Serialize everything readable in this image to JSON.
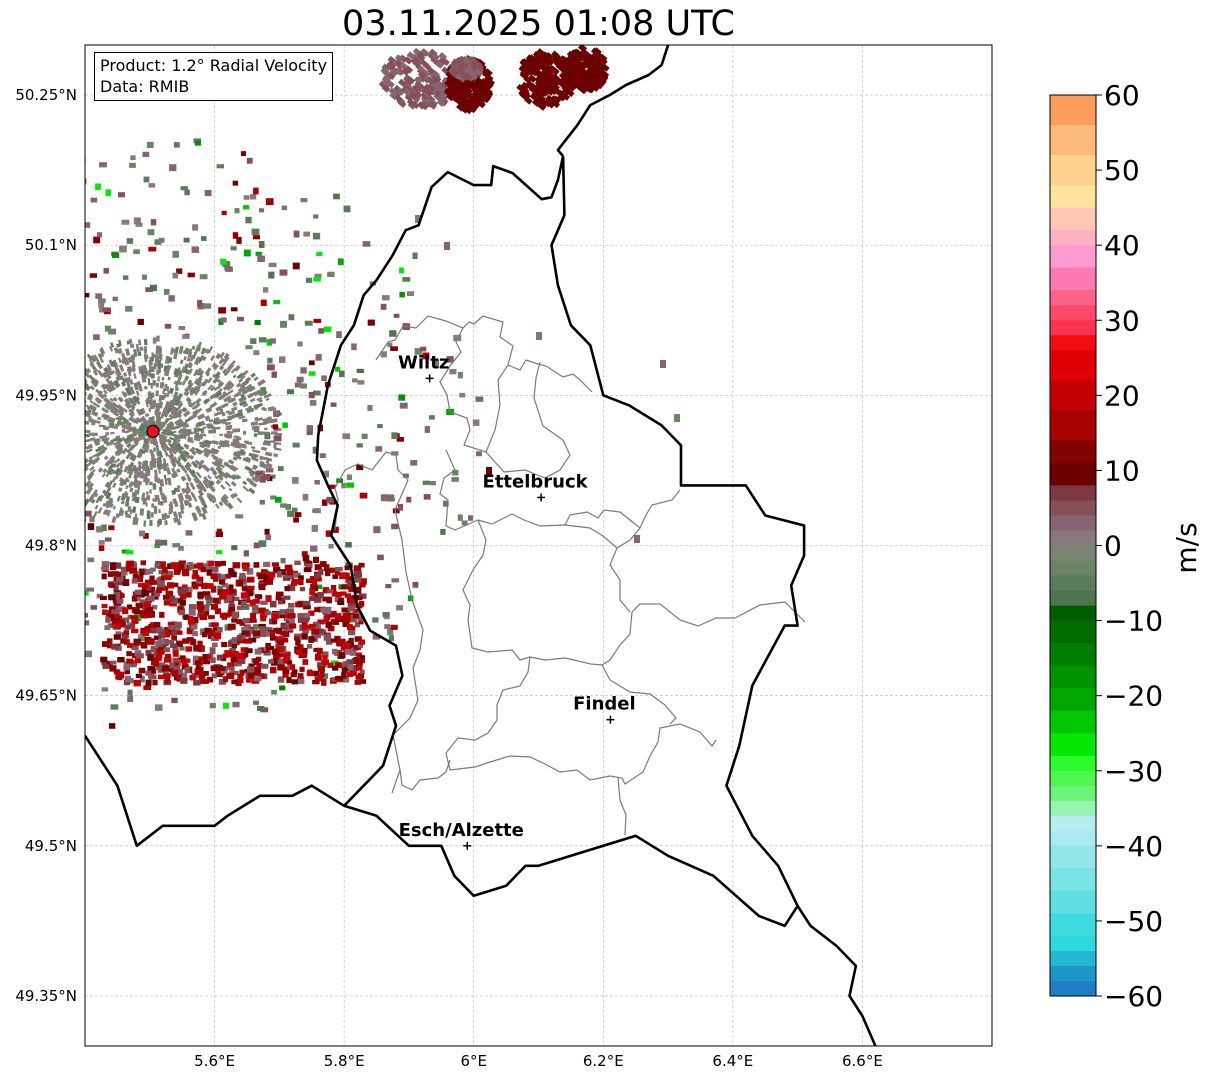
{
  "title": "03.11.2025 01:08 UTC",
  "info": {
    "product": "Product: 1.2° Radial Velocity",
    "data": "Data: RMIB"
  },
  "axes": {
    "lon_min": 5.4,
    "lon_max": 6.8,
    "lat_min": 49.3,
    "lat_max": 50.3,
    "lat_ticks": [
      {
        "value": 50.25,
        "label": "50.25°N"
      },
      {
        "value": 50.1,
        "label": "50.1°N"
      },
      {
        "value": 49.95,
        "label": "49.95°N"
      },
      {
        "value": 49.8,
        "label": "49.8°N"
      },
      {
        "value": 49.65,
        "label": "49.65°N"
      },
      {
        "value": 49.5,
        "label": "49.5°N"
      },
      {
        "value": 49.35,
        "label": "49.35°N"
      }
    ],
    "lon_ticks": [
      {
        "value": 5.6,
        "label": "5.6°E"
      },
      {
        "value": 5.8,
        "label": "5.8°E"
      },
      {
        "value": 6.0,
        "label": "6°E"
      },
      {
        "value": 6.2,
        "label": "6.2°E"
      },
      {
        "value": 6.4,
        "label": "6.4°E"
      },
      {
        "value": 6.6,
        "label": "6.6°E"
      }
    ]
  },
  "cities": [
    {
      "name": "Wiltz",
      "lon": 5.932,
      "lat": 49.967
    },
    {
      "name": "Ettelbruck",
      "lon": 6.104,
      "lat": 49.848
    },
    {
      "name": "Findel",
      "lon": 6.211,
      "lat": 49.626
    },
    {
      "name": "Esch/Alzette",
      "lon": 5.99,
      "lat": 49.5
    }
  ],
  "radar_site": {
    "lon": 5.505,
    "lat": 49.914
  },
  "colorbar": {
    "label": "m/s",
    "min": -60,
    "max": 60,
    "ticks": [
      {
        "value": 60,
        "label": "60"
      },
      {
        "value": 50,
        "label": "50"
      },
      {
        "value": 40,
        "label": "40"
      },
      {
        "value": 30,
        "label": "30"
      },
      {
        "value": 20,
        "label": "20"
      },
      {
        "value": 10,
        "label": "10"
      },
      {
        "value": 0,
        "label": "0"
      },
      {
        "value": -10,
        "label": "−10"
      },
      {
        "value": -20,
        "label": "−20"
      },
      {
        "value": -30,
        "label": "−30"
      },
      {
        "value": -40,
        "label": "−40"
      },
      {
        "value": -50,
        "label": "−50"
      },
      {
        "value": -60,
        "label": "−60"
      }
    ],
    "colors": [
      {
        "from": 56,
        "to": 60,
        "color": "#fc9d5c"
      },
      {
        "from": 52,
        "to": 56,
        "color": "#fdb979"
      },
      {
        "from": 48,
        "to": 52,
        "color": "#fed28e"
      },
      {
        "from": 45,
        "to": 48,
        "color": "#fde49c"
      },
      {
        "from": 42,
        "to": 45,
        "color": "#fcc7b4"
      },
      {
        "from": 40,
        "to": 42,
        "color": "#fbb2c2"
      },
      {
        "from": 37,
        "to": 40,
        "color": "#fd9ad2"
      },
      {
        "from": 34,
        "to": 37,
        "color": "#fc7ab1"
      },
      {
        "from": 32,
        "to": 34,
        "color": "#fd6289"
      },
      {
        "from": 30,
        "to": 32,
        "color": "#fe4a68"
      },
      {
        "from": 28,
        "to": 30,
        "color": "#fa3350"
      },
      {
        "from": 26,
        "to": 28,
        "color": "#f20d12"
      },
      {
        "from": 22,
        "to": 26,
        "color": "#e00006"
      },
      {
        "from": 18,
        "to": 22,
        "color": "#c50004"
      },
      {
        "from": 14,
        "to": 18,
        "color": "#a60202"
      },
      {
        "from": 11,
        "to": 14,
        "color": "#860102"
      },
      {
        "from": 8,
        "to": 11,
        "color": "#6c0000"
      },
      {
        "from": 6,
        "to": 8,
        "color": "#7c3a40"
      },
      {
        "from": 4,
        "to": 6,
        "color": "#855058"
      },
      {
        "from": 2,
        "to": 4,
        "color": "#866470"
      },
      {
        "from": 0,
        "to": 2,
        "color": "#887a7a"
      },
      {
        "from": -2,
        "to": 0,
        "color": "#7a8472"
      },
      {
        "from": -4,
        "to": -2,
        "color": "#6a8466"
      },
      {
        "from": -6,
        "to": -4,
        "color": "#5a7c5a"
      },
      {
        "from": -8,
        "to": -6,
        "color": "#4e7450"
      },
      {
        "from": -10,
        "to": -8,
        "color": "#005e00"
      },
      {
        "from": -13,
        "to": -10,
        "color": "#006b00"
      },
      {
        "from": -16,
        "to": -13,
        "color": "#007e00"
      },
      {
        "from": -19,
        "to": -16,
        "color": "#009300"
      },
      {
        "from": -22,
        "to": -19,
        "color": "#00a700"
      },
      {
        "from": -25,
        "to": -22,
        "color": "#00c800"
      },
      {
        "from": -28,
        "to": -25,
        "color": "#05e805"
      },
      {
        "from": -30,
        "to": -28,
        "color": "#2cfb2c"
      },
      {
        "from": -32,
        "to": -30,
        "color": "#4ef64e"
      },
      {
        "from": -34,
        "to": -32,
        "color": "#6cf277"
      },
      {
        "from": -36,
        "to": -34,
        "color": "#96f4b0"
      },
      {
        "from": -38,
        "to": -36,
        "color": "#b7edef"
      },
      {
        "from": -40,
        "to": -38,
        "color": "#a9ebee"
      },
      {
        "from": -43,
        "to": -40,
        "color": "#93e6e8"
      },
      {
        "from": -46,
        "to": -43,
        "color": "#79e2e4"
      },
      {
        "from": -49,
        "to": -46,
        "color": "#5fdfe1"
      },
      {
        "from": -52,
        "to": -49,
        "color": "#3fdcdf"
      },
      {
        "from": -54,
        "to": -52,
        "color": "#2ed9dd"
      },
      {
        "from": -56,
        "to": -54,
        "color": "#24b7d2"
      },
      {
        "from": -58,
        "to": -56,
        "color": "#1c95c8"
      },
      {
        "from": -60,
        "to": -58,
        "color": "#1e80c2"
      }
    ]
  },
  "borders": {
    "luxembourg": [
      [
        6.138,
        50.189
      ],
      [
        6.13,
        50.165
      ],
      [
        6.12,
        50.148
      ],
      [
        6.105,
        50.146
      ],
      [
        6.06,
        50.172
      ],
      [
        6.03,
        50.179
      ],
      [
        6.027,
        50.16
      ],
      [
        6.0,
        50.16
      ],
      [
        5.96,
        50.173
      ],
      [
        5.935,
        50.158
      ],
      [
        5.915,
        50.12
      ],
      [
        5.895,
        50.115
      ],
      [
        5.875,
        50.09
      ],
      [
        5.85,
        50.065
      ],
      [
        5.83,
        50.05
      ],
      [
        5.815,
        50.02
      ],
      [
        5.795,
        50.0
      ],
      [
        5.775,
        49.96
      ],
      [
        5.76,
        49.91
      ],
      [
        5.758,
        49.885
      ],
      [
        5.775,
        49.86
      ],
      [
        5.79,
        49.84
      ],
      [
        5.78,
        49.81
      ],
      [
        5.81,
        49.78
      ],
      [
        5.82,
        49.74
      ],
      [
        5.84,
        49.715
      ],
      [
        5.88,
        49.7
      ],
      [
        5.89,
        49.67
      ],
      [
        5.87,
        49.64
      ],
      [
        5.88,
        49.62
      ],
      [
        5.86,
        49.58
      ],
      [
        5.8,
        49.54
      ],
      [
        5.85,
        49.53
      ],
      [
        5.9,
        49.5
      ],
      [
        5.95,
        49.5
      ],
      [
        5.97,
        49.47
      ],
      [
        6.0,
        49.45
      ],
      [
        6.05,
        49.46
      ],
      [
        6.08,
        49.48
      ],
      [
        6.1,
        49.48
      ],
      [
        6.15,
        49.49
      ],
      [
        6.25,
        49.51
      ],
      [
        6.3,
        49.49
      ],
      [
        6.37,
        49.47
      ],
      [
        6.44,
        49.43
      ],
      [
        6.48,
        49.42
      ],
      [
        6.5,
        49.44
      ],
      [
        6.47,
        49.48
      ],
      [
        6.43,
        49.51
      ],
      [
        6.39,
        49.56
      ],
      [
        6.41,
        49.6
      ],
      [
        6.43,
        49.66
      ],
      [
        6.48,
        49.72
      ],
      [
        6.5,
        49.72
      ],
      [
        6.49,
        49.76
      ],
      [
        6.51,
        49.79
      ],
      [
        6.51,
        49.82
      ],
      [
        6.45,
        49.83
      ],
      [
        6.42,
        49.86
      ],
      [
        6.35,
        49.86
      ],
      [
        6.32,
        49.86
      ],
      [
        6.32,
        49.9
      ],
      [
        6.29,
        49.92
      ],
      [
        6.24,
        49.94
      ],
      [
        6.2,
        49.95
      ],
      [
        6.18,
        50.0
      ],
      [
        6.15,
        50.02
      ],
      [
        6.13,
        50.06
      ],
      [
        6.12,
        50.1
      ],
      [
        6.14,
        50.13
      ],
      [
        6.138,
        50.189
      ]
    ],
    "france_belgium": [
      [
        5.4,
        49.61
      ],
      [
        5.45,
        49.56
      ],
      [
        5.48,
        49.5
      ],
      [
        5.52,
        49.52
      ],
      [
        5.6,
        49.52
      ],
      [
        5.62,
        49.53
      ],
      [
        5.67,
        49.55
      ],
      [
        5.72,
        49.55
      ],
      [
        5.75,
        49.56
      ],
      [
        5.8,
        49.54
      ]
    ],
    "germany_france": [
      [
        6.5,
        49.44
      ],
      [
        6.52,
        49.42
      ],
      [
        6.56,
        49.4
      ],
      [
        6.59,
        49.38
      ],
      [
        6.58,
        49.35
      ],
      [
        6.6,
        49.33
      ],
      [
        6.62,
        49.3
      ]
    ],
    "germany_belgium": [
      [
        6.138,
        50.189
      ],
      [
        6.13,
        50.195
      ],
      [
        6.16,
        50.22
      ],
      [
        6.18,
        50.24
      ],
      [
        6.21,
        50.25
      ],
      [
        6.235,
        50.26
      ],
      [
        6.27,
        50.27
      ],
      [
        6.29,
        50.28
      ],
      [
        6.3,
        50.3
      ]
    ]
  }
}
